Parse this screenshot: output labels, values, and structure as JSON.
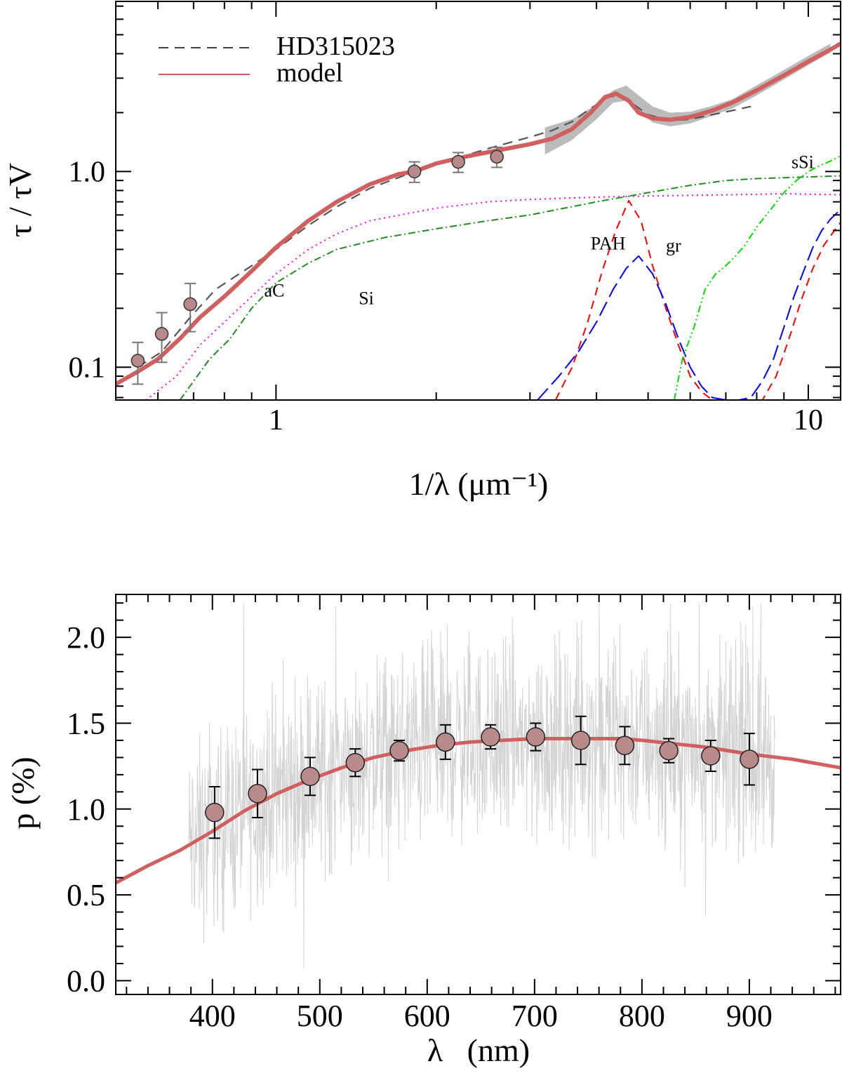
{
  "figure_title": "",
  "chart_data": [
    {
      "type": "line",
      "id": "extinction",
      "title": "",
      "xlabel": "1/λ (μm⁻¹)",
      "ylabel": "τ / τV",
      "xscale": "log",
      "yscale": "log",
      "xlim": [
        0.5,
        11.5
      ],
      "ylim": [
        0.068,
        7.4
      ],
      "grid": false,
      "x_ticks": [
        {
          "value": 1,
          "label": "1"
        },
        {
          "value": 10,
          "label": "10"
        }
      ],
      "y_ticks": [
        {
          "value": 0.1,
          "label": "0.1"
        },
        {
          "value": 1.0,
          "label": "1.0"
        }
      ],
      "legend_position": "top-left",
      "legend": [
        {
          "label": "HD315023",
          "style": "dashed",
          "color": "#444444"
        },
        {
          "label": "model",
          "style": "solid",
          "color": "#d06060"
        }
      ],
      "colors": {
        "model": "#d06060",
        "observed": "#555555",
        "band": "#bbbbbb",
        "aC": "#ff00ff",
        "Si": "#228b22",
        "PAH": "#ff0000",
        "gr": "#0000ff",
        "sSi": "#00dd00"
      },
      "series": [
        {
          "name": "model",
          "x": [
            0.5,
            0.55,
            0.6,
            0.66,
            0.72,
            0.8,
            0.9,
            1.0,
            1.15,
            1.3,
            1.5,
            1.7,
            1.82,
            2.0,
            2.3,
            2.6,
            3.0,
            3.3,
            3.6,
            3.9,
            4.15,
            4.35,
            4.6,
            4.8,
            5.1,
            5.5,
            6.0,
            6.6,
            7.2,
            8.0,
            9.0,
            10.0,
            11.0,
            11.5
          ],
          "y": [
            0.082,
            0.095,
            0.11,
            0.14,
            0.18,
            0.23,
            0.31,
            0.41,
            0.56,
            0.7,
            0.86,
            0.97,
            1.0,
            1.1,
            1.2,
            1.28,
            1.38,
            1.47,
            1.65,
            2.0,
            2.4,
            2.5,
            2.3,
            2.0,
            1.87,
            1.84,
            1.9,
            2.05,
            2.25,
            2.6,
            3.1,
            3.65,
            4.2,
            4.5
          ]
        },
        {
          "name": "HD315023",
          "x": [
            0.55,
            0.61,
            0.69,
            0.77,
            0.9,
            1.0,
            1.15,
            1.3,
            1.5,
            1.82,
            2.2,
            2.6,
            3.0,
            3.3,
            3.6,
            3.9,
            4.2,
            4.4,
            4.7,
            5.0,
            5.5,
            6.0,
            6.6,
            7.2,
            7.8
          ],
          "y": [
            0.1,
            0.12,
            0.18,
            0.25,
            0.33,
            0.4,
            0.53,
            0.66,
            0.82,
            1.0,
            1.18,
            1.35,
            1.5,
            1.62,
            1.8,
            2.1,
            2.4,
            2.45,
            2.2,
            1.95,
            1.82,
            1.85,
            1.95,
            2.05,
            2.15
          ]
        },
        {
          "name": "aC",
          "x": [
            0.57,
            0.65,
            0.72,
            0.8,
            0.9,
            1.0,
            1.15,
            1.3,
            1.5,
            2.0,
            2.5,
            3.0,
            4.0,
            5.0,
            7.0,
            9.0,
            11.5
          ],
          "y": [
            0.068,
            0.09,
            0.13,
            0.17,
            0.23,
            0.3,
            0.4,
            0.48,
            0.56,
            0.65,
            0.7,
            0.72,
            0.74,
            0.75,
            0.76,
            0.77,
            0.76
          ]
        },
        {
          "name": "Si",
          "x": [
            0.66,
            0.75,
            0.82,
            0.9,
            1.0,
            1.15,
            1.3,
            1.6,
            2.0,
            2.5,
            3.0,
            4.0,
            5.0,
            6.0,
            7.0,
            8.0,
            9.0,
            11.5
          ],
          "y": [
            0.068,
            0.11,
            0.14,
            0.2,
            0.27,
            0.34,
            0.4,
            0.46,
            0.51,
            0.56,
            0.6,
            0.7,
            0.78,
            0.85,
            0.9,
            0.92,
            0.93,
            0.95
          ]
        },
        {
          "name": "PAH",
          "x": [
            3.35,
            3.6,
            3.85,
            4.1,
            4.35,
            4.6,
            4.85,
            5.1,
            5.4,
            5.7,
            6.0,
            6.3,
            6.6,
            6.9,
            7.2,
            7.7,
            8.2,
            8.7,
            9.2,
            9.7,
            10.2,
            10.7,
            11.2,
            11.5
          ],
          "y": [
            0.068,
            0.1,
            0.17,
            0.31,
            0.5,
            0.71,
            0.56,
            0.33,
            0.2,
            0.13,
            0.09,
            0.075,
            0.068,
            0.06,
            0.055,
            0.06,
            0.068,
            0.09,
            0.14,
            0.22,
            0.32,
            0.42,
            0.5,
            0.55
          ]
        },
        {
          "name": "gr",
          "x": [
            3.1,
            3.4,
            3.7,
            4.0,
            4.3,
            4.55,
            4.8,
            5.1,
            5.4,
            5.7,
            6.0,
            6.3,
            6.6,
            7.0,
            7.4,
            7.8,
            8.2,
            8.6,
            9.0,
            9.4,
            9.8,
            10.2,
            10.6,
            11.0,
            11.5
          ],
          "y": [
            0.068,
            0.09,
            0.12,
            0.17,
            0.25,
            0.32,
            0.37,
            0.3,
            0.21,
            0.14,
            0.1,
            0.08,
            0.07,
            0.068,
            0.068,
            0.07,
            0.085,
            0.11,
            0.16,
            0.23,
            0.31,
            0.41,
            0.5,
            0.57,
            0.64
          ]
        },
        {
          "name": "sSi",
          "x": [
            5.6,
            5.8,
            6.1,
            6.4,
            6.7,
            7.0,
            7.3,
            7.6,
            8.0,
            8.5,
            9.0,
            9.5,
            10.0,
            10.5,
            11.0,
            11.5
          ],
          "y": [
            0.068,
            0.11,
            0.16,
            0.25,
            0.3,
            0.33,
            0.37,
            0.42,
            0.52,
            0.64,
            0.78,
            0.9,
            1.0,
            1.07,
            1.13,
            1.2
          ]
        }
      ],
      "error_points": {
        "x": [
          0.55,
          0.61,
          0.69,
          1.82,
          2.2,
          2.6
        ],
        "y": [
          0.108,
          0.148,
          0.21,
          1.0,
          1.12,
          1.19
        ],
        "err": [
          0.026,
          0.042,
          0.058,
          0.12,
          0.13,
          0.14
        ]
      },
      "uncertainty_band": {
        "x": [
          3.2,
          3.6,
          4.0,
          4.3,
          4.55,
          4.8,
          5.1,
          5.5,
          6.0,
          6.5,
          7.2,
          8.0,
          9.0,
          10.0,
          11.0
        ],
        "lower": [
          1.22,
          1.45,
          1.85,
          2.25,
          2.3,
          2.05,
          1.78,
          1.7,
          1.76,
          1.9,
          2.1,
          2.45,
          2.95,
          3.5,
          4.05
        ],
        "upper": [
          1.68,
          1.85,
          2.2,
          2.6,
          2.75,
          2.45,
          2.15,
          2.0,
          2.02,
          2.14,
          2.34,
          2.76,
          3.3,
          3.9,
          4.5
        ]
      },
      "annotations": [
        {
          "text": "aC",
          "x": 0.95,
          "y": 0.23,
          "color": "#ff00ff"
        },
        {
          "text": "Si",
          "x": 1.43,
          "y": 0.21,
          "color": "#228b22"
        },
        {
          "text": "PAH",
          "x": 3.9,
          "y": 0.4,
          "color": "#ff0000"
        },
        {
          "text": "gr",
          "x": 5.4,
          "y": 0.39,
          "color": "#0000ff"
        },
        {
          "text": "sSi",
          "x": 9.3,
          "y": 1.04,
          "color": "#00dd00"
        }
      ]
    },
    {
      "type": "line",
      "id": "polarization",
      "title": "",
      "xlabel": "λ   (nm)",
      "ylabel": "p (%)",
      "xlim": [
        310,
        985
      ],
      "ylim": [
        -0.08,
        2.25
      ],
      "grid": false,
      "x_ticks": [
        {
          "value": 400,
          "label": "400"
        },
        {
          "value": 500,
          "label": "500"
        },
        {
          "value": 600,
          "label": "600"
        },
        {
          "value": 700,
          "label": "700"
        },
        {
          "value": 800,
          "label": "800"
        },
        {
          "value": 900,
          "label": "900"
        }
      ],
      "y_ticks": [
        {
          "value": 0.0,
          "label": "0.0"
        },
        {
          "value": 0.5,
          "label": "0.5"
        },
        {
          "value": 1.0,
          "label": "1.0"
        },
        {
          "value": 1.5,
          "label": "1.5"
        },
        {
          "value": 2.0,
          "label": "2.0"
        }
      ],
      "colors": {
        "model": "#d06060",
        "noise": "#d3d3d3",
        "points": "#b98a8a"
      },
      "noise_range": {
        "x_start": 378,
        "x_end": 924,
        "min": 0.05,
        "max": 2.2
      },
      "series": [
        {
          "name": "model",
          "x": [
            310,
            340,
            370,
            400,
            430,
            460,
            490,
            520,
            550,
            580,
            610,
            640,
            670,
            700,
            740,
            780,
            800,
            830,
            860,
            900,
            940,
            985
          ],
          "y": [
            0.57,
            0.67,
            0.76,
            0.87,
            0.99,
            1.09,
            1.17,
            1.24,
            1.3,
            1.34,
            1.37,
            1.39,
            1.4,
            1.41,
            1.41,
            1.41,
            1.4,
            1.38,
            1.36,
            1.32,
            1.29,
            1.24
          ]
        }
      ],
      "error_points": {
        "x": [
          402,
          442,
          491,
          533,
          574,
          617,
          659,
          701,
          743,
          784,
          825,
          864,
          900
        ],
        "y": [
          0.98,
          1.09,
          1.19,
          1.27,
          1.34,
          1.39,
          1.42,
          1.42,
          1.4,
          1.37,
          1.34,
          1.31,
          1.29
        ],
        "err": [
          0.15,
          0.14,
          0.11,
          0.08,
          0.06,
          0.1,
          0.07,
          0.08,
          0.14,
          0.11,
          0.07,
          0.09,
          0.15
        ]
      }
    }
  ]
}
